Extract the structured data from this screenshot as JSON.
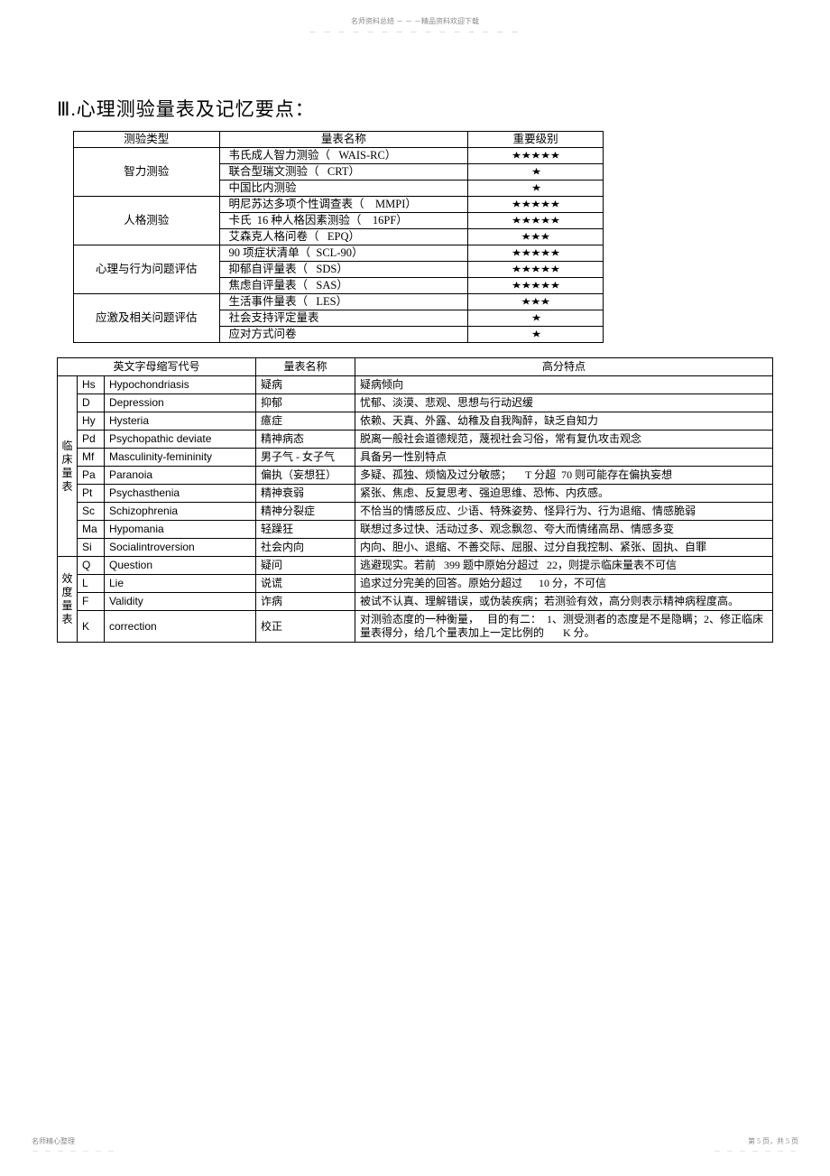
{
  "header": {
    "line1": "名师资料总结 － － －精品资料欢迎下载",
    "line2": "－ － － － － － － － － － － － － － －"
  },
  "title": "Ⅲ.心理测验量表及记忆要点：",
  "table1": {
    "headers": [
      "测验类型",
      "量表名称",
      "重要级别"
    ],
    "groups": [
      {
        "category": "智力测验",
        "rows": [
          {
            "name": "韦氏成人智力测验（   WAIS-RC）",
            "stars": "★★★★★"
          },
          {
            "name": "联合型瑞文测验（   CRT）",
            "stars": "★"
          },
          {
            "name": "中国比内测验",
            "stars": "★"
          }
        ]
      },
      {
        "category": "人格测验",
        "rows": [
          {
            "name": "明尼苏达多项个性调查表（    MMPI）",
            "stars": "★★★★★"
          },
          {
            "name": "卡氏  16 种人格因素测验（    16PF）",
            "stars": "★★★★★"
          },
          {
            "name": "艾森克人格问卷（   EPQ）",
            "stars": "★★★"
          }
        ]
      },
      {
        "category": "心理与行为问题评估",
        "rows": [
          {
            "name": "90 项症状清单（  SCL-90）",
            "stars": "★★★★★"
          },
          {
            "name": "抑郁自评量表（   SDS）",
            "stars": "★★★★★"
          },
          {
            "name": "焦虑自评量表（   SAS）",
            "stars": "★★★★★"
          }
        ]
      },
      {
        "category": "应激及相关问题评估",
        "rows": [
          {
            "name": "生活事件量表（   LES）",
            "stars": "★★★"
          },
          {
            "name": "社会支持评定量表",
            "stars": "★"
          },
          {
            "name": "应对方式问卷",
            "stars": "★"
          }
        ]
      }
    ]
  },
  "table2": {
    "headers": [
      "英文字母缩写代号",
      "量表名称",
      "高分特点"
    ],
    "groups": [
      {
        "category": "临床量表",
        "rows": [
          {
            "code": "Hs",
            "eng": "Hypochondriasis",
            "cname": "疑病",
            "desc": "疑病倾向"
          },
          {
            "code": "D",
            "eng": "Depression",
            "cname": "抑郁",
            "desc": "忧郁、淡漠、悲观、思想与行动迟缓"
          },
          {
            "code": "Hy",
            "eng": "Hysteria",
            "cname": "癔症",
            "desc": "依赖、天真、外露、幼稚及自我陶醉，缺乏自知力"
          },
          {
            "code": "Pd",
            "eng": "Psychopathic deviate",
            "cname": "精神病态",
            "desc": "脱离一般社会道德规范，蔑视社会习俗，常有复仇攻击观念"
          },
          {
            "code": "Mf",
            "eng": "Masculinity-femininity",
            "cname": "男子气 - 女子气",
            "desc": "具备另一性别特点"
          },
          {
            "code": "Pa",
            "eng": "Paranoia",
            "cname": "偏执（妄想狂）",
            "desc": "多疑、孤独、烦恼及过分敏感；     T 分超  70 则可能存在偏执妄想"
          },
          {
            "code": "Pt",
            "eng": "Psychasthenia",
            "cname": "精神衰弱",
            "desc": "紧张、焦虑、反复思考、强迫思维、恐怖、内疚感。"
          },
          {
            "code": "Sc",
            "eng": "Schizophrenia",
            "cname": "精神分裂症",
            "desc": "不恰当的情感反应、少语、特殊姿势、怪异行为、行为退缩、情感脆弱"
          },
          {
            "code": "Ma",
            "eng": "Hypomania",
            "cname": "轻躁狂",
            "desc": "联想过多过快、活动过多、观念飘忽、夸大而情绪高昂、情感多变"
          },
          {
            "code": "Si",
            "eng": "Socialintroversion",
            "cname": "社会内向",
            "desc": "内向、胆小、退缩、不善交际、屈服、过分自我控制、紧张、固执、自罪"
          }
        ]
      },
      {
        "category": "效度量表",
        "rows": [
          {
            "code": "Q",
            "eng": "Question",
            "cname": "疑问",
            "desc": "逃避现实。若前   399 题中原始分超过   22，则提示临床量表不可信"
          },
          {
            "code": "L",
            "eng": "Lie",
            "cname": "说谎",
            "desc": "追求过分完美的回答。原始分超过      10 分，不可信"
          },
          {
            "code": "F",
            "eng": "Validity",
            "cname": "诈病",
            "desc": "被试不认真、理解错误，或伪装疾病；若测验有效，高分则表示精神病程度高。"
          },
          {
            "code": "K",
            "eng": "correction",
            "cname": "校正",
            "desc": "对测验态度的一种衡量，   目的有二：  1、测受测者的态度是不是隐瞒；2、修正临床量表得分，给几个量表加上一定比例的       K 分。"
          }
        ]
      }
    ]
  },
  "footer": {
    "left1": "名师精心整理",
    "left2": "－ － － － － － －",
    "right1": "第 5 页，共 5 页",
    "right2": "－ － － － － － －"
  }
}
